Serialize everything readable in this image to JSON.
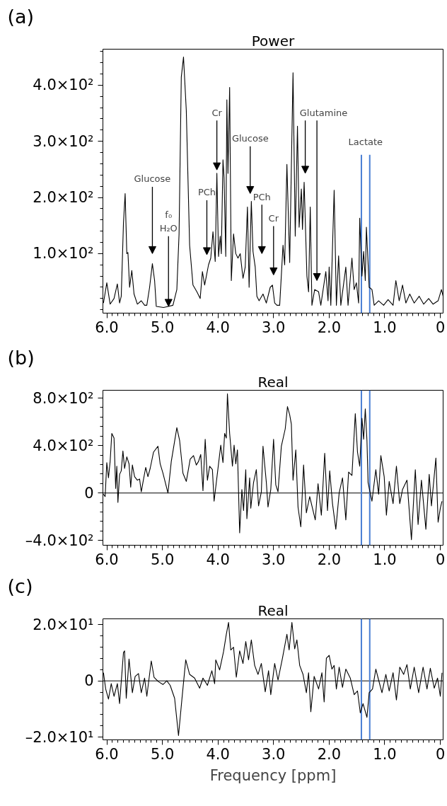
{
  "chart_data": [
    {
      "type": "line",
      "title": "Power",
      "xlim": [
        6.07,
        -0.05
      ],
      "ylim": [
        -6,
        464
      ],
      "xticks": [
        {
          "value": 6,
          "label": "6.0"
        },
        {
          "value": 5,
          "label": "5.0"
        },
        {
          "value": 4,
          "label": "4.0"
        },
        {
          "value": 3,
          "label": "3.0"
        },
        {
          "value": 2,
          "label": "2.0"
        },
        {
          "value": 1,
          "label": "1.0"
        },
        0
      ],
      "yticks": [
        {
          "value": 100,
          "label": "1.0×10²"
        },
        {
          "value": 200,
          "label": "2.0×10²"
        },
        {
          "value": 300,
          "label": "3.0×10²"
        },
        {
          "value": 400,
          "label": "4.0×10²"
        }
      ],
      "series": [
        {
          "color": "#000000",
          "x": [
            6.06,
            6.0,
            5.94,
            5.87,
            5.81,
            5.77,
            5.74,
            5.7,
            5.67,
            5.64,
            5.62,
            5.59,
            5.55,
            5.51,
            5.45,
            5.38,
            5.32,
            5.28,
            5.23,
            5.18,
            5.14,
            5.11,
            4.98,
            4.89,
            4.81,
            4.74,
            4.7,
            4.66,
            4.62,
            4.57,
            4.51,
            4.45,
            4.38,
            4.32,
            4.28,
            4.24,
            4.17,
            4.13,
            4.09,
            4.05,
            4.02,
            3.99,
            3.96,
            3.94,
            3.91,
            3.89,
            3.86,
            3.84,
            3.82,
            3.79,
            3.76,
            3.72,
            3.68,
            3.64,
            3.6,
            3.55,
            3.51,
            3.47,
            3.44,
            3.4,
            3.37,
            3.33,
            3.3,
            3.26,
            3.19,
            3.13,
            3.06,
            3.02,
            2.98,
            2.94,
            2.89,
            2.83,
            2.8,
            2.76,
            2.71,
            2.65,
            2.61,
            2.57,
            2.54,
            2.5,
            2.48,
            2.45,
            2.4,
            2.37,
            2.34,
            2.31,
            2.26,
            2.19,
            2.15,
            2.06,
            2.02,
            2.0,
            1.97,
            1.91,
            1.87,
            1.83,
            1.79,
            1.7,
            1.66,
            1.59,
            1.55,
            1.51,
            1.47,
            1.45,
            1.41,
            1.38,
            1.35,
            1.33,
            1.28,
            1.23,
            1.19,
            1.11,
            1.02,
            0.94,
            0.85,
            0.8,
            0.74,
            0.68,
            0.62,
            0.55,
            0.47,
            0.38,
            0.3,
            0.21,
            0.13,
            0.04,
            -0.02,
            -0.05
          ],
          "values": [
            12,
            48,
            10,
            20,
            46,
            12,
            24,
            155,
            207,
            100,
            102,
            40,
            70,
            28,
            10,
            16,
            8,
            8,
            40,
            82,
            52,
            6,
            4,
            6,
            8,
            36,
            135,
            414,
            450,
            355,
            115,
            44,
            32,
            20,
            68,
            44,
            80,
            92,
            139,
            86,
            243,
            95,
            131,
            100,
            267,
            235,
            95,
            374,
            243,
            396,
            52,
            135,
            100,
            92,
            100,
            56,
            76,
            183,
            40,
            193,
            104,
            76,
            24,
            16,
            28,
            12,
            40,
            44,
            12,
            8,
            8,
            115,
            80,
            259,
            84,
            422,
            131,
            327,
            147,
            215,
            143,
            227,
            60,
            32,
            183,
            8,
            36,
            32,
            8,
            68,
            16,
            76,
            8,
            213,
            8,
            96,
            8,
            76,
            8,
            92,
            36,
            48,
            12,
            163,
            60,
            104,
            52,
            147,
            40,
            36,
            8,
            16,
            8,
            18,
            8,
            52,
            16,
            44,
            12,
            28,
            12,
            24,
            10,
            20,
            10,
            16,
            36,
            24
          ]
        }
      ],
      "annotations": [
        "(a)",
        "Glucose",
        {
          "text": "f₀\nH₂O",
          "x": 4.89,
          "y": 6
        },
        "PCh",
        "Cr",
        "Glucose",
        "PCh",
        "Cr",
        "Glutamine"
      ],
      "ref_lines": [
        {
          "axis": "x",
          "value": 1.42,
          "label": "Lactate",
          "color": "#4a7fd4"
        },
        {
          "axis": "x",
          "value": 1.27,
          "label": null,
          "color": "#4a7fd4"
        }
      ]
    },
    {
      "type": "line",
      "title": "Real",
      "xlim": [
        6.07,
        -0.05
      ],
      "ylim": [
        -440,
        866
      ],
      "xticks": [
        {
          "value": 6,
          "label": "6.0"
        },
        {
          "value": 5,
          "label": "5.0"
        },
        {
          "value": 4,
          "label": "4.0"
        },
        {
          "value": 3,
          "label": "3.0"
        },
        {
          "value": 2,
          "label": "2.0"
        },
        {
          "value": 1,
          "label": "1.0"
        },
        0
      ],
      "yticks": [
        {
          "value": -400,
          "label": "–4.0×10²"
        },
        0,
        {
          "value": 400,
          "label": "4.0×10²"
        },
        {
          "value": 800,
          "label": "8.0×10²"
        }
      ],
      "series": [
        {
          "color": "#000000",
          "x": [
            6.06,
            6.03,
            6.0,
            5.97,
            5.94,
            5.91,
            5.87,
            5.84,
            5.82,
            5.8,
            5.77,
            5.74,
            5.71,
            5.68,
            5.64,
            5.6,
            5.57,
            5.54,
            5.5,
            5.45,
            5.41,
            5.38,
            5.35,
            5.3,
            5.26,
            5.22,
            5.16,
            5.08,
            5.04,
            4.99,
            4.9,
            4.84,
            4.74,
            4.69,
            4.63,
            4.57,
            4.5,
            4.44,
            4.39,
            4.35,
            4.31,
            4.27,
            4.23,
            4.19,
            4.15,
            4.1,
            4.07,
            4.02,
            3.95,
            3.91,
            3.88,
            3.85,
            3.83,
            3.79,
            3.74,
            3.71,
            3.68,
            3.65,
            3.61,
            3.57,
            3.54,
            3.5,
            3.48,
            3.43,
            3.41,
            3.36,
            3.31,
            3.27,
            3.22,
            3.19,
            3.13,
            3.1,
            3.05,
            3.0,
            2.96,
            2.92,
            2.86,
            2.79,
            2.75,
            2.71,
            2.68,
            2.65,
            2.6,
            2.56,
            2.51,
            2.46,
            2.41,
            2.35,
            2.31,
            2.25,
            2.2,
            2.14,
            2.08,
            2.03,
            1.99,
            1.94,
            1.88,
            1.82,
            1.76,
            1.7,
            1.65,
            1.59,
            1.53,
            1.49,
            1.45,
            1.41,
            1.38,
            1.35,
            1.32,
            1.3,
            1.23,
            1.16,
            1.11,
            1.07,
            1.01,
            0.97,
            0.92,
            0.85,
            0.79,
            0.73,
            0.68,
            0.6,
            0.52,
            0.45,
            0.4,
            0.34,
            0.26,
            0.2,
            0.16,
            0.08,
            0.04,
            0.0,
            -0.03
          ],
          "values": [
            -10,
            -30,
            256,
            128,
            266,
            502,
            463,
            39,
            226,
            -79,
            157,
            187,
            354,
            207,
            305,
            246,
            49,
            236,
            138,
            108,
            118,
            10,
            89,
            216,
            138,
            207,
            344,
            394,
            246,
            167,
            0,
            266,
            551,
            443,
            167,
            98,
            285,
            315,
            236,
            266,
            325,
            20,
            453,
            108,
            226,
            197,
            -69,
            128,
            403,
            256,
            502,
            463,
            836,
            502,
            226,
            403,
            246,
            364,
            -335,
            30,
            -148,
            197,
            -216,
            128,
            -128,
            89,
            197,
            -108,
            10,
            394,
            89,
            -118,
            30,
            453,
            69,
            10,
            394,
            541,
            728,
            659,
            581,
            108,
            364,
            -118,
            -285,
            236,
            -167,
            -30,
            -108,
            -226,
            79,
            -187,
            335,
            -148,
            187,
            -89,
            -305,
            0,
            128,
            -226,
            177,
            148,
            669,
            344,
            226,
            630,
            453,
            709,
            443,
            89,
            -69,
            197,
            -10,
            315,
            138,
            -187,
            98,
            -89,
            226,
            -89,
            30,
            108,
            -394,
            197,
            -266,
            108,
            -305,
            157,
            -108,
            295,
            -246,
            -128,
            -69
          ]
        }
      ],
      "annotations": [
        "(b)"
      ],
      "ref_lines": [
        {
          "axis": "y",
          "value": 0,
          "label": null,
          "color": "#000000"
        },
        {
          "axis": "x",
          "value": 1.42,
          "label": null,
          "color": "#4a7fd4"
        },
        {
          "axis": "x",
          "value": 1.27,
          "label": null,
          "color": "#4a7fd4"
        }
      ]
    },
    {
      "type": "line",
      "title": "Real",
      "xlabel": "Frequency [ppm]",
      "xlim": [
        6.07,
        -0.05
      ],
      "ylim": [
        -21,
        22.1
      ],
      "xticks": [
        {
          "value": 6,
          "label": "6.0"
        },
        {
          "value": 5,
          "label": "5.0"
        },
        {
          "value": 4,
          "label": "4.0"
        },
        {
          "value": 3,
          "label": "3.0"
        },
        {
          "value": 2,
          "label": "2.0"
        },
        {
          "value": 1,
          "label": "1.0"
        },
        0
      ],
      "yticks": [
        {
          "value": -20,
          "label": "–2.0×10¹"
        },
        0,
        {
          "value": 20,
          "label": "2.0×10¹"
        }
      ],
      "series": [
        {
          "color": "#000000",
          "x": [
            6.06,
            6.02,
            5.97,
            5.92,
            5.87,
            5.81,
            5.77,
            5.7,
            5.68,
            5.65,
            5.6,
            5.54,
            5.49,
            5.43,
            5.38,
            5.32,
            5.28,
            5.2,
            5.15,
            5.07,
            4.99,
            4.92,
            4.86,
            4.78,
            4.71,
            4.65,
            4.58,
            4.51,
            4.42,
            4.33,
            4.27,
            4.19,
            4.11,
            4.06,
            4.04,
            3.97,
            3.9,
            3.85,
            3.81,
            3.77,
            3.72,
            3.67,
            3.61,
            3.55,
            3.5,
            3.45,
            3.4,
            3.34,
            3.28,
            3.22,
            3.15,
            3.09,
            3.05,
            2.98,
            2.92,
            2.84,
            2.76,
            2.72,
            2.67,
            2.62,
            2.58,
            2.53,
            2.47,
            2.41,
            2.37,
            2.33,
            2.27,
            2.19,
            2.13,
            2.09,
            2.05,
            2.0,
            1.95,
            1.91,
            1.87,
            1.82,
            1.76,
            1.7,
            1.62,
            1.55,
            1.49,
            1.44,
            1.39,
            1.32,
            1.28,
            1.22,
            1.16,
            1.11,
            1.05,
            0.98,
            0.92,
            0.85,
            0.79,
            0.73,
            0.66,
            0.6,
            0.54,
            0.47,
            0.39,
            0.31,
            0.24,
            0.18,
            0.11,
            0.05,
            0.0,
            -0.03
          ],
          "values": [
            2.9,
            -2.9,
            -6.5,
            -1.0,
            -5.5,
            -1.0,
            -8.1,
            10.1,
            10.7,
            -6.2,
            7.8,
            -4.2,
            1.6,
            2.6,
            -4.2,
            1.0,
            -5.5,
            7.1,
            1.3,
            -0.3,
            -1.3,
            0,
            -1.6,
            -6.2,
            -19.5,
            -6.8,
            7.5,
            2.3,
            1.0,
            -2.6,
            1.0,
            -1.6,
            3.6,
            -1.0,
            7.5,
            3.9,
            10.4,
            16.6,
            20.8,
            11.0,
            12.0,
            1.3,
            10.7,
            6.2,
            14.0,
            7.5,
            14.6,
            5.5,
            2.3,
            6.2,
            -3.9,
            3.6,
            -4.9,
            6.2,
            0.3,
            8.1,
            16.6,
            11.0,
            20.8,
            11.4,
            14.6,
            5.5,
            2.3,
            -4.2,
            2.9,
            -11.0,
            1.6,
            -2.9,
            2.9,
            -7.5,
            8.1,
            9.1,
            4.2,
            5.5,
            -2.9,
            4.9,
            -2.3,
            4.2,
            1.0,
            -4.9,
            -3.6,
            -11.4,
            -8.1,
            -13.0,
            -4.2,
            -2.9,
            4.2,
            0.3,
            -4.2,
            2.3,
            -3.6,
            2.9,
            -6.8,
            4.9,
            2.3,
            5.8,
            -2.9,
            4.9,
            -4.2,
            4.9,
            -2.9,
            4.5,
            -2.6,
            1.0,
            -5.5,
            2.9
          ]
        }
      ],
      "annotations": [
        "(c)"
      ],
      "ref_lines": [
        {
          "axis": "y",
          "value": 0,
          "label": null,
          "color": "#000000"
        },
        {
          "axis": "x",
          "value": 1.42,
          "label": null,
          "color": "#4a7fd4"
        },
        {
          "axis": "x",
          "value": 1.27,
          "label": null,
          "color": "#4a7fd4"
        }
      ]
    }
  ]
}
